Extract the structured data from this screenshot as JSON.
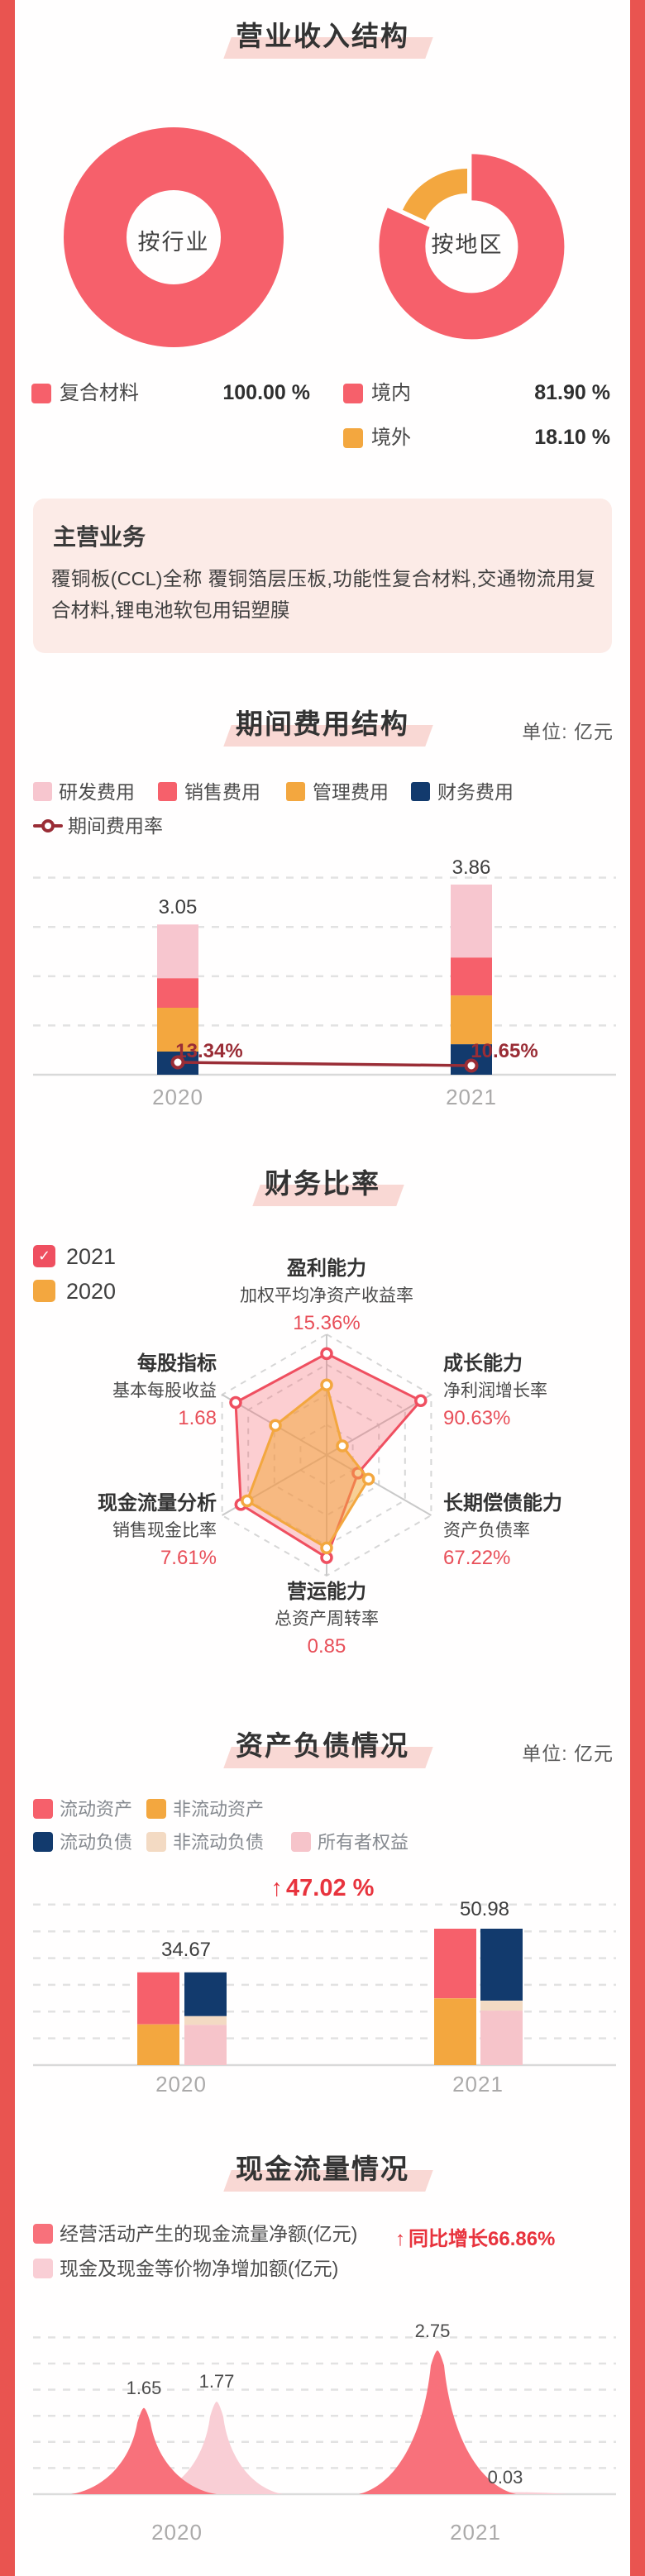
{
  "page": {
    "accent_red": "#e95450",
    "unit_label": "单位: 亿元"
  },
  "revenue": {
    "title": "营业收入结构",
    "donut_industry_label": "按行业",
    "donut_region_label": "按地区",
    "legend_industry": [
      {
        "label": "复合材料",
        "value": "100.00 %"
      }
    ],
    "legend_region": [
      {
        "label": "境内",
        "value": "81.90 %"
      },
      {
        "label": "境外",
        "value": "18.10 %"
      }
    ]
  },
  "business": {
    "title": "主营业务",
    "body": "覆铜板(CCL)全称 覆铜箔层压板,功能性复合材料,交通物流用复合材料,锂电池软包用铝塑膜"
  },
  "expenses": {
    "title": "期间费用结构",
    "legend": [
      "研发费用",
      "销售费用",
      "管理费用",
      "财务费用"
    ],
    "rate_legend": "期间费用率",
    "totals_labels": [
      "3.05",
      "3.86"
    ],
    "rate_labels": [
      "13.34%",
      "10.65%"
    ],
    "years": [
      "2020",
      "2021"
    ]
  },
  "ratios": {
    "title": "财务比率",
    "legend": [
      "2021",
      "2020"
    ],
    "check": "✓",
    "axes": [
      {
        "group": "盈利能力",
        "metric": "加权平均净资产收益率",
        "value": "15.36%"
      },
      {
        "group": "成长能力",
        "metric": "净利润增长率",
        "value": "90.63%"
      },
      {
        "group": "长期偿债能力",
        "metric": "资产负债率",
        "value": "67.22%"
      },
      {
        "group": "营运能力",
        "metric": "总资产周转率",
        "value": "0.85"
      },
      {
        "group": "现金流量分析",
        "metric": "销售现金比率",
        "value": "7.61%"
      },
      {
        "group": "每股指标",
        "metric": "基本每股收益",
        "value": "1.68"
      }
    ]
  },
  "balance": {
    "title": "资产负债情况",
    "legend_row1": [
      "流动资产",
      "非流动资产"
    ],
    "legend_row2": [
      "流动负债",
      "非流动负债",
      "所有者权益"
    ],
    "growth": "47.02 %",
    "growth_arrow": "↑",
    "totals_labels": [
      "34.67",
      "50.98"
    ],
    "years": [
      "2020",
      "2021"
    ]
  },
  "cashflow": {
    "title": "现金流量情况",
    "legend": [
      "经营活动产生的现金流量净额(亿元)",
      "现金及现金等价物净增加额(亿元)"
    ],
    "growth": "同比增长66.86%",
    "growth_arrow": "↑",
    "value_labels": [
      "1.65",
      "1.77",
      "2.75",
      "0.03"
    ],
    "years": [
      "2020",
      "2021"
    ]
  },
  "chart_data": [
    {
      "id": "donut_industry",
      "type": "pie",
      "title": "按行业",
      "labels": [
        "复合材料"
      ],
      "values": [
        100.0
      ],
      "colors": [
        "#f6606b"
      ]
    },
    {
      "id": "donut_region",
      "type": "pie",
      "title": "按地区",
      "labels": [
        "境内",
        "境外"
      ],
      "values": [
        81.9,
        18.1
      ],
      "colors": [
        "#f6606b",
        "#f3a73f"
      ],
      "exploded_slice": 0
    },
    {
      "id": "expenses",
      "type": "bar",
      "stacked": true,
      "title": "期间费用结构",
      "ylabel": "亿元",
      "categories": [
        "2020",
        "2021"
      ],
      "series": [
        {
          "name": "财务费用",
          "color": "#123a6d",
          "values": [
            0.47,
            0.62
          ]
        },
        {
          "name": "管理费用",
          "color": "#f3a73f",
          "values": [
            0.89,
            0.99
          ]
        },
        {
          "name": "销售费用",
          "color": "#f6606b",
          "values": [
            0.6,
            0.77
          ]
        },
        {
          "name": "研发费用",
          "color": "#f7c6cf",
          "values": [
            1.09,
            1.48
          ]
        }
      ],
      "totals": [
        3.05,
        3.86
      ],
      "line": {
        "name": "期间费用率",
        "values_pct": [
          13.34,
          10.65
        ],
        "color": "#9a2d36"
      },
      "ylim": [
        0,
        4.3
      ],
      "gridlines": [
        1,
        2,
        3,
        4
      ],
      "grid_dashed": true
    },
    {
      "id": "radar",
      "type": "radar",
      "title": "财务比率",
      "axes": [
        "盈利能力",
        "成长能力",
        "长期偿债能力",
        "营运能力",
        "现金流量分析",
        "每股指标"
      ],
      "metrics": [
        "加权平均净资产收益率",
        "净利润增长率",
        "资产负债率",
        "总资产周转率",
        "销售现金比率",
        "基本每股收益"
      ],
      "axis_values": [
        "15.36%",
        "90.63%",
        "67.22%",
        "0.85",
        "7.61%",
        "1.68"
      ],
      "rings": [
        0.25,
        0.5,
        0.75,
        1
      ],
      "series": [
        {
          "name": "2021",
          "color": "#ef4f60",
          "fill": "rgba(246,96,107,0.3)",
          "norm": [
            0.84,
            0.9,
            0.3,
            0.85,
            0.82,
            0.87
          ]
        },
        {
          "name": "2020",
          "color": "#f3a73f",
          "fill": "rgba(243,167,63,0.55)",
          "norm": [
            0.58,
            0.15,
            0.4,
            0.77,
            0.76,
            0.49
          ]
        }
      ]
    },
    {
      "id": "balance",
      "type": "bar",
      "grouped_stacked": true,
      "title": "资产负债情况",
      "ylabel": "亿元",
      "categories": [
        "2020",
        "2021"
      ],
      "assets_series": [
        {
          "name": "非流动资产",
          "color": "#f3a73f",
          "values": [
            15.25,
            24.98
          ]
        },
        {
          "name": "流动资产",
          "color": "#f6606b",
          "values": [
            19.42,
            26.0
          ]
        }
      ],
      "liab_series": [
        {
          "name": "所有者权益",
          "color": "#f6c4ca",
          "values": [
            15.05,
            20.38
          ]
        },
        {
          "name": "非流动负债",
          "color": "#f3dac3",
          "values": [
            3.28,
            3.7
          ]
        },
        {
          "name": "流动负债",
          "color": "#123a6d",
          "values": [
            16.34,
            26.9
          ]
        }
      ],
      "totals": [
        34.67,
        50.98
      ],
      "growth_pct": 47.02,
      "gridlines": [
        10,
        20,
        30,
        40,
        50,
        60
      ],
      "grid_dashed": true
    },
    {
      "id": "cashflow",
      "type": "area",
      "title": "现金流量情况",
      "categories": [
        "2020",
        "2021"
      ],
      "series": [
        {
          "name": "经营活动产生的现金流量净额(亿元)",
          "color": "#f8717b",
          "values": [
            1.65,
            2.75
          ]
        },
        {
          "name": "现金及现金等价物净增加额(亿元)",
          "color": "#f9ced5",
          "values": [
            1.77,
            0.03
          ]
        }
      ],
      "growth_pct": 66.86,
      "gridlines": [
        0.5,
        1.0,
        1.5,
        2.0,
        2.5,
        3.0
      ],
      "grid_dashed": true
    }
  ]
}
